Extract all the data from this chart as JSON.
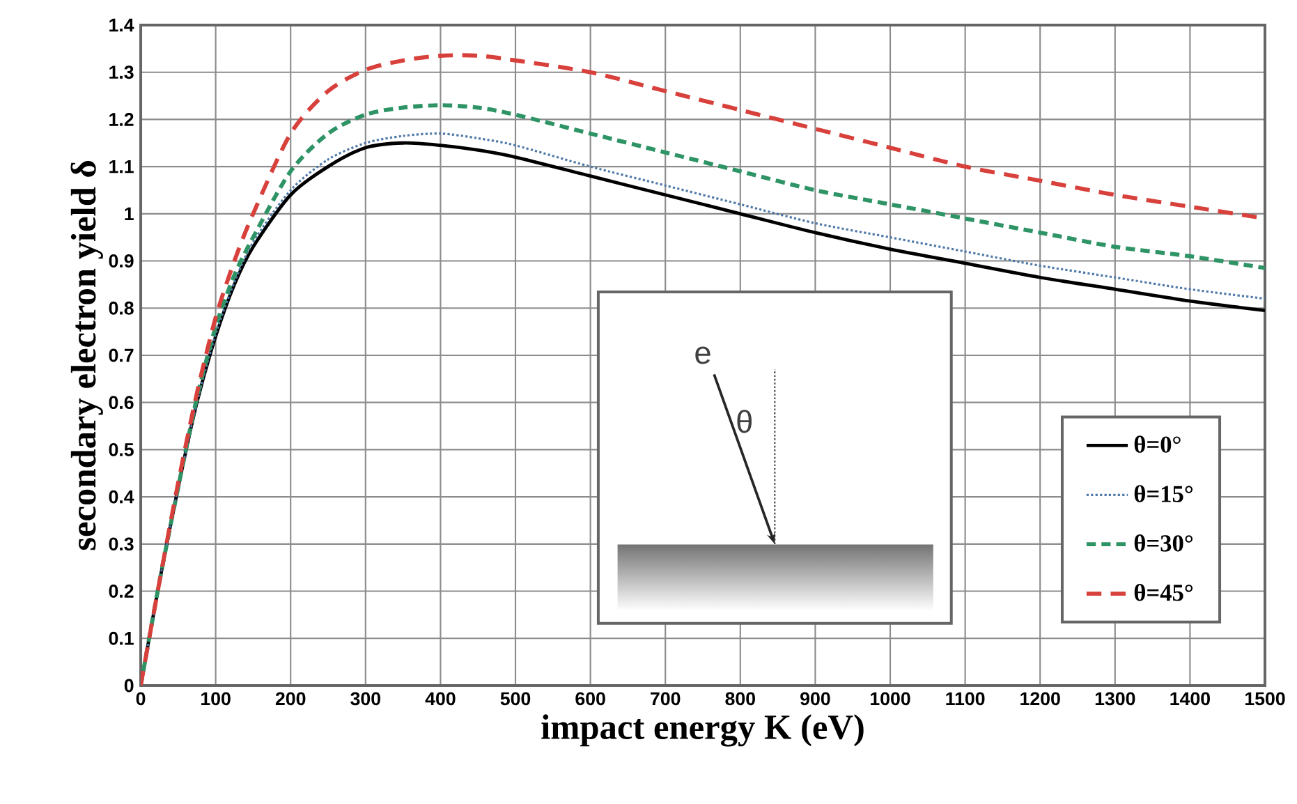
{
  "chart_data": {
    "type": "line",
    "xlabel": "impact energy K (eV)",
    "ylabel": "secondary electron yield δ",
    "xlim": [
      0,
      1500
    ],
    "ylim": [
      0,
      1.4
    ],
    "xticks": [
      0,
      100,
      200,
      300,
      400,
      500,
      600,
      700,
      800,
      900,
      1000,
      1100,
      1200,
      1300,
      1400,
      1500
    ],
    "yticks": [
      0,
      0.1,
      0.2,
      0.3,
      0.4,
      0.5,
      0.6,
      0.7,
      0.8,
      0.9,
      1,
      1.1,
      1.2,
      1.3,
      1.4
    ],
    "grid": true,
    "legend": "bottom right",
    "annotations": [
      "e",
      "θ"
    ],
    "x": [
      0,
      25,
      50,
      75,
      100,
      125,
      150,
      200,
      250,
      300,
      350,
      400,
      450,
      500,
      600,
      700,
      800,
      900,
      1000,
      1100,
      1200,
      1300,
      1400,
      1500
    ],
    "series": [
      {
        "name": "θ=0°",
        "color": "#000000",
        "line_style": "solid",
        "values": [
          0,
          0.22,
          0.42,
          0.6,
          0.74,
          0.85,
          0.93,
          1.04,
          1.1,
          1.14,
          1.15,
          1.145,
          1.135,
          1.12,
          1.08,
          1.04,
          1.0,
          0.96,
          0.925,
          0.895,
          0.865,
          0.84,
          0.815,
          0.795
        ]
      },
      {
        "name": "θ=15°",
        "color": "#4f79a8",
        "line_style": "dotted",
        "values": [
          0,
          0.22,
          0.42,
          0.6,
          0.745,
          0.855,
          0.94,
          1.05,
          1.115,
          1.15,
          1.165,
          1.17,
          1.16,
          1.145,
          1.1,
          1.06,
          1.02,
          0.98,
          0.95,
          0.92,
          0.89,
          0.865,
          0.84,
          0.82
        ]
      },
      {
        "name": "θ=30°",
        "color": "#2e9466",
        "line_style": "dashed",
        "values": [
          0,
          0.22,
          0.42,
          0.61,
          0.76,
          0.87,
          0.95,
          1.09,
          1.17,
          1.21,
          1.225,
          1.23,
          1.225,
          1.21,
          1.17,
          1.13,
          1.09,
          1.05,
          1.02,
          0.99,
          0.96,
          0.93,
          0.91,
          0.885
        ]
      },
      {
        "name": "θ=45°",
        "color": "#d8403c",
        "line_style": "dashed",
        "values": [
          0,
          0.22,
          0.43,
          0.62,
          0.78,
          0.9,
          1.0,
          1.17,
          1.26,
          1.305,
          1.325,
          1.335,
          1.335,
          1.325,
          1.3,
          1.26,
          1.22,
          1.18,
          1.14,
          1.1,
          1.07,
          1.04,
          1.015,
          0.99
        ]
      }
    ]
  }
}
